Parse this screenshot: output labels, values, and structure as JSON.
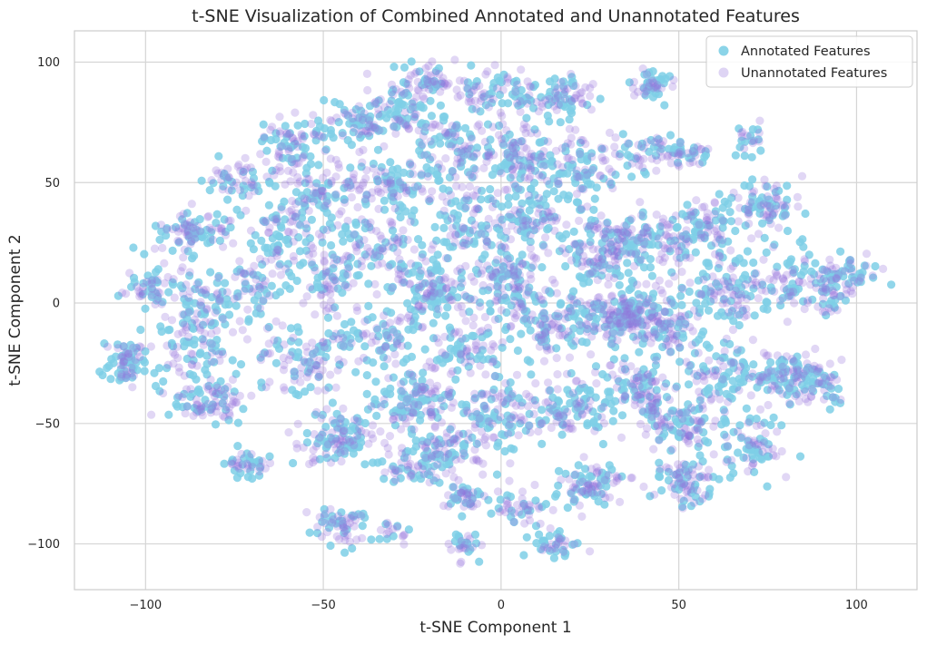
{
  "chart_data": {
    "type": "scatter",
    "title": "t-SNE Visualization of Combined Annotated and Unannotated Features",
    "xlabel": "t-SNE Component 1",
    "ylabel": "t-SNE Component 2",
    "xlim": [
      -120,
      117
    ],
    "ylim": [
      -119,
      113
    ],
    "xticks": [
      -100,
      -50,
      0,
      50,
      100
    ],
    "yticks": [
      -100,
      -50,
      0,
      50,
      100
    ],
    "xtick_labels": [
      "−100",
      "−50",
      "0",
      "50",
      "100"
    ],
    "ytick_labels": [
      "−100",
      "−50",
      "0",
      "50",
      "100"
    ],
    "grid": true,
    "legend_position": "top-right",
    "series": [
      {
        "name": "Annotated Features",
        "color": "#7ecfe6",
        "alpha": 0.85
      },
      {
        "name": "Unannotated Features",
        "color": "#9370db",
        "alpha": 0.28
      }
    ],
    "point_count_per_series": 2600,
    "clusters": [
      {
        "cx": -105,
        "cy": -24,
        "sx": 3,
        "sy": 4,
        "w": 2
      },
      {
        "cx": -98,
        "cy": 8,
        "sx": 4,
        "sy": 6,
        "w": 2
      },
      {
        "cx": -85,
        "cy": 30,
        "sx": 5,
        "sy": 4,
        "w": 3
      },
      {
        "cx": -82,
        "cy": 0,
        "sx": 7,
        "sy": 8,
        "w": 4
      },
      {
        "cx": -85,
        "cy": -20,
        "sx": 6,
        "sy": 6,
        "w": 3
      },
      {
        "cx": -82,
        "cy": -40,
        "sx": 7,
        "sy": 5,
        "w": 4
      },
      {
        "cx": -73,
        "cy": 52,
        "sx": 4,
        "sy": 5,
        "w": 2
      },
      {
        "cx": -72,
        "cy": -67,
        "sx": 4,
        "sy": 3,
        "w": 1.5
      },
      {
        "cx": -68,
        "cy": 10,
        "sx": 5,
        "sy": 6,
        "w": 2
      },
      {
        "cx": -62,
        "cy": 30,
        "sx": 5,
        "sy": 8,
        "w": 3
      },
      {
        "cx": -58,
        "cy": 65,
        "sx": 5,
        "sy": 6,
        "w": 3
      },
      {
        "cx": -55,
        "cy": -25,
        "sx": 6,
        "sy": 8,
        "w": 3
      },
      {
        "cx": -50,
        "cy": 45,
        "sx": 6,
        "sy": 8,
        "w": 4
      },
      {
        "cx": -48,
        "cy": 10,
        "sx": 6,
        "sy": 8,
        "w": 4
      },
      {
        "cx": -45,
        "cy": -55,
        "sx": 6,
        "sy": 6,
        "w": 4
      },
      {
        "cx": -45,
        "cy": -92,
        "sx": 4,
        "sy": 4,
        "w": 2
      },
      {
        "cx": -40,
        "cy": 75,
        "sx": 6,
        "sy": 5,
        "w": 3
      },
      {
        "cx": -35,
        "cy": -15,
        "sx": 6,
        "sy": 7,
        "w": 4
      },
      {
        "cx": -35,
        "cy": 25,
        "sx": 6,
        "sy": 7,
        "w": 4
      },
      {
        "cx": -30,
        "cy": 50,
        "sx": 6,
        "sy": 6,
        "w": 4
      },
      {
        "cx": -30,
        "cy": -95,
        "sx": 3,
        "sy": 3,
        "w": 1
      },
      {
        "cx": -28,
        "cy": 82,
        "sx": 5,
        "sy": 6,
        "w": 3
      },
      {
        "cx": -25,
        "cy": -40,
        "sx": 6,
        "sy": 6,
        "w": 4
      },
      {
        "cx": -25,
        "cy": -70,
        "sx": 5,
        "sy": 4,
        "w": 2
      },
      {
        "cx": -20,
        "cy": 92,
        "sx": 4,
        "sy": 4,
        "w": 2
      },
      {
        "cx": -20,
        "cy": 5,
        "sx": 6,
        "sy": 8,
        "w": 5
      },
      {
        "cx": -15,
        "cy": -60,
        "sx": 6,
        "sy": 5,
        "w": 3
      },
      {
        "cx": -12,
        "cy": 65,
        "sx": 5,
        "sy": 8,
        "w": 4
      },
      {
        "cx": -10,
        "cy": 35,
        "sx": 6,
        "sy": 8,
        "w": 4
      },
      {
        "cx": -10,
        "cy": -20,
        "sx": 6,
        "sy": 8,
        "w": 4
      },
      {
        "cx": -10,
        "cy": -80,
        "sx": 4,
        "sy": 3,
        "w": 2
      },
      {
        "cx": -10,
        "cy": -102,
        "sx": 3,
        "sy": 3,
        "w": 1
      },
      {
        "cx": -2,
        "cy": 88,
        "sx": 5,
        "sy": 5,
        "w": 3
      },
      {
        "cx": 0,
        "cy": -45,
        "sx": 6,
        "sy": 8,
        "w": 4
      },
      {
        "cx": 2,
        "cy": 10,
        "sx": 6,
        "sy": 8,
        "w": 5
      },
      {
        "cx": 5,
        "cy": 60,
        "sx": 5,
        "sy": 8,
        "w": 4
      },
      {
        "cx": 5,
        "cy": -85,
        "sx": 4,
        "sy": 4,
        "w": 2
      },
      {
        "cx": 10,
        "cy": 35,
        "sx": 5,
        "sy": 6,
        "w": 3
      },
      {
        "cx": 15,
        "cy": -10,
        "sx": 6,
        "sy": 8,
        "w": 5
      },
      {
        "cx": 15,
        "cy": -100,
        "sx": 4,
        "sy": 3,
        "w": 2
      },
      {
        "cx": 18,
        "cy": 85,
        "sx": 5,
        "sy": 4,
        "w": 3
      },
      {
        "cx": 20,
        "cy": -45,
        "sx": 6,
        "sy": 6,
        "w": 4
      },
      {
        "cx": 22,
        "cy": 55,
        "sx": 5,
        "sy": 8,
        "w": 4
      },
      {
        "cx": 25,
        "cy": -75,
        "sx": 5,
        "sy": 5,
        "w": 3
      },
      {
        "cx": 28,
        "cy": 20,
        "sx": 6,
        "sy": 8,
        "w": 5
      },
      {
        "cx": 35,
        "cy": -5,
        "sx": 5,
        "sy": 5,
        "w": 6
      },
      {
        "cx": 38,
        "cy": -35,
        "sx": 6,
        "sy": 8,
        "w": 4
      },
      {
        "cx": 40,
        "cy": 62,
        "sx": 4,
        "sy": 5,
        "w": 2
      },
      {
        "cx": 42,
        "cy": 25,
        "sx": 6,
        "sy": 7,
        "w": 4
      },
      {
        "cx": 42,
        "cy": 90,
        "sx": 3,
        "sy": 3,
        "w": 2
      },
      {
        "cx": 48,
        "cy": -10,
        "sx": 6,
        "sy": 8,
        "w": 4
      },
      {
        "cx": 50,
        "cy": -50,
        "sx": 6,
        "sy": 6,
        "w": 4
      },
      {
        "cx": 52,
        "cy": -75,
        "sx": 4,
        "sy": 4,
        "w": 3
      },
      {
        "cx": 53,
        "cy": 62,
        "sx": 4,
        "sy": 3,
        "w": 2
      },
      {
        "cx": 58,
        "cy": 30,
        "sx": 6,
        "sy": 8,
        "w": 4
      },
      {
        "cx": 62,
        "cy": -30,
        "sx": 6,
        "sy": 6,
        "w": 4
      },
      {
        "cx": 65,
        "cy": 5,
        "sx": 6,
        "sy": 7,
        "w": 4
      },
      {
        "cx": 70,
        "cy": -60,
        "sx": 5,
        "sy": 6,
        "w": 3
      },
      {
        "cx": 70,
        "cy": 68,
        "sx": 3,
        "sy": 3,
        "w": 1
      },
      {
        "cx": 75,
        "cy": 40,
        "sx": 5,
        "sy": 5,
        "w": 3
      },
      {
        "cx": 80,
        "cy": -30,
        "sx": 5,
        "sy": 5,
        "w": 3
      },
      {
        "cx": 80,
        "cy": 10,
        "sx": 5,
        "sy": 7,
        "w": 3
      },
      {
        "cx": 90,
        "cy": -35,
        "sx": 4,
        "sy": 6,
        "w": 2
      },
      {
        "cx": 92,
        "cy": 5,
        "sx": 4,
        "sy": 5,
        "w": 2
      },
      {
        "cx": 98,
        "cy": 12,
        "sx": 4,
        "sy": 4,
        "w": 2
      }
    ]
  }
}
